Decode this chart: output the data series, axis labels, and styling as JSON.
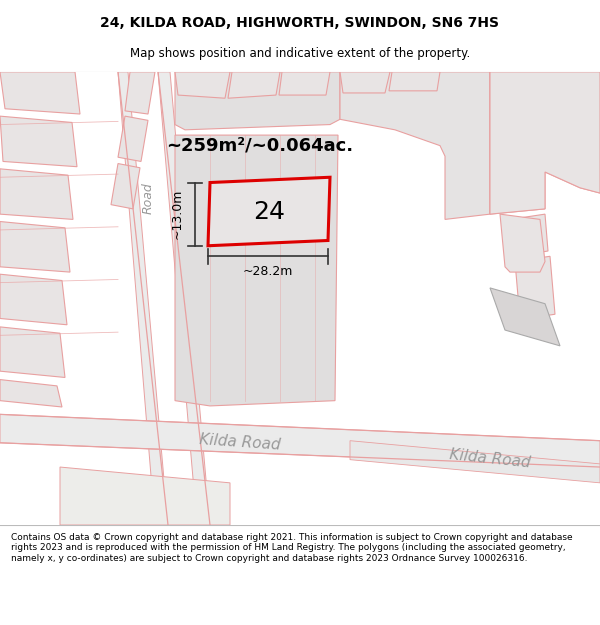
{
  "title": "24, KILDA ROAD, HIGHWORTH, SWINDON, SN6 7HS",
  "subtitle": "Map shows position and indicative extent of the property.",
  "footer": "Contains OS data © Crown copyright and database right 2021. This information is subject to Crown copyright and database rights 2023 and is reproduced with the permission of HM Land Registry. The polygons (including the associated geometry, namely x, y co-ordinates) are subject to Crown copyright and database rights 2023 Ordnance Survey 100026316.",
  "bg_color": "#f0eded",
  "parcel_fill": "#e0dede",
  "building_fill": "#e8e4e4",
  "building_edge": "#e8a0a0",
  "highlight_color": "#dd0000",
  "dim_line_color": "#333333",
  "road_label_color": "#999999",
  "area_text": "~259m²/~0.064ac.",
  "number_text": "24",
  "dim_width": "~28.2m",
  "dim_height": "~13.0m",
  "road_label1": "Kilda Road",
  "road_label2": "Kilda Road",
  "side_road_label": "Road",
  "title_fontsize": 10,
  "subtitle_fontsize": 8.5,
  "footer_fontsize": 6.5,
  "area_fontsize": 13,
  "number_fontsize": 18,
  "dim_fontsize": 9,
  "road_label_fontsize": 11
}
